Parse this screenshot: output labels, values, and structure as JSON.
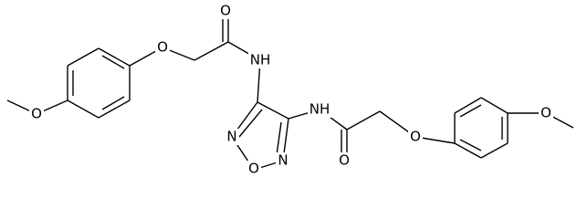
{
  "atoms": [
    "O",
    "NH",
    "O",
    "O",
    "NH",
    "N",
    "O",
    "N",
    "O",
    "O",
    "O"
  ]
}
